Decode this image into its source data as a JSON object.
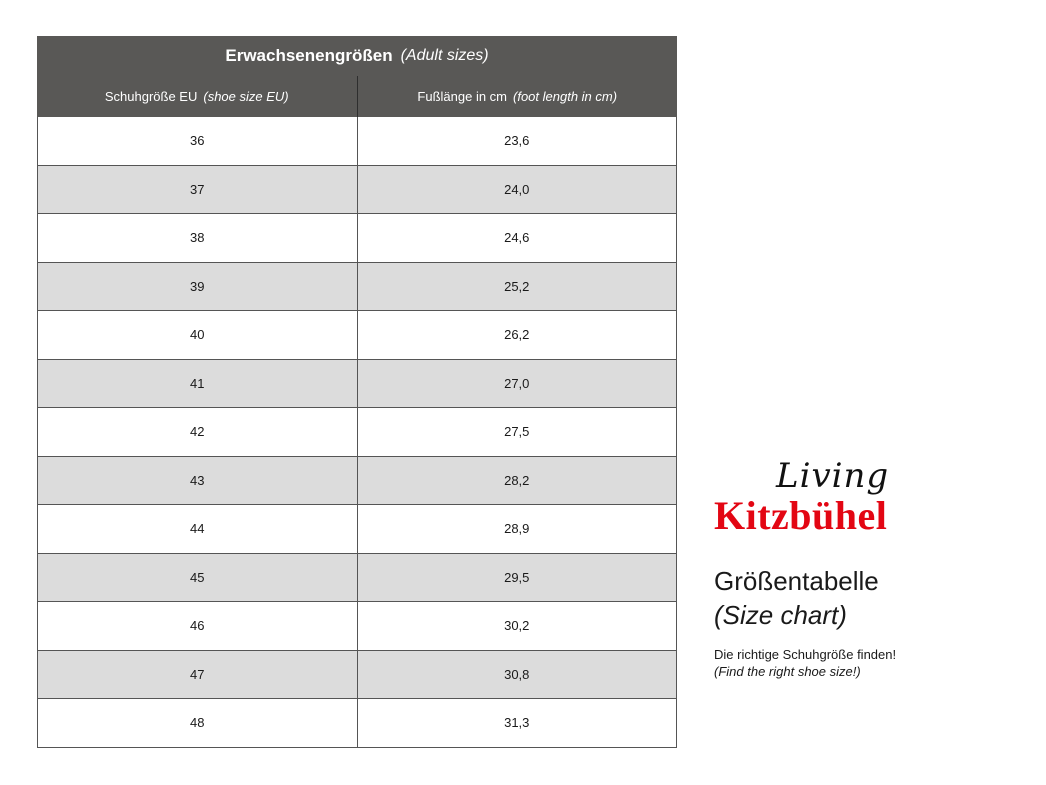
{
  "table": {
    "title": "Erwachsenengrößen",
    "title_en": "(Adult sizes)",
    "columns": [
      {
        "label": "Schuhgröße EU",
        "label_en": "(shoe size EU)"
      },
      {
        "label": "Fußlänge in cm",
        "label_en": "(foot length in cm)"
      }
    ],
    "rows": [
      [
        "36",
        "23,6"
      ],
      [
        "37",
        "24,0"
      ],
      [
        "38",
        "24,6"
      ],
      [
        "39",
        "25,2"
      ],
      [
        "40",
        "26,2"
      ],
      [
        "41",
        "27,0"
      ],
      [
        "42",
        "27,5"
      ],
      [
        "43",
        "28,2"
      ],
      [
        "44",
        "28,9"
      ],
      [
        "45",
        "29,5"
      ],
      [
        "46",
        "30,2"
      ],
      [
        "47",
        "30,8"
      ],
      [
        "48",
        "31,3"
      ]
    ]
  },
  "logo": {
    "script": "Living",
    "brand": "Kitzbühel",
    "brand_color": "#e30613"
  },
  "side": {
    "heading": "Größentabelle",
    "heading_en": "(Size chart)",
    "subtitle": "Die richtige Schuhgröße finden!",
    "subtitle_en": "(Find the right shoe size!)"
  }
}
